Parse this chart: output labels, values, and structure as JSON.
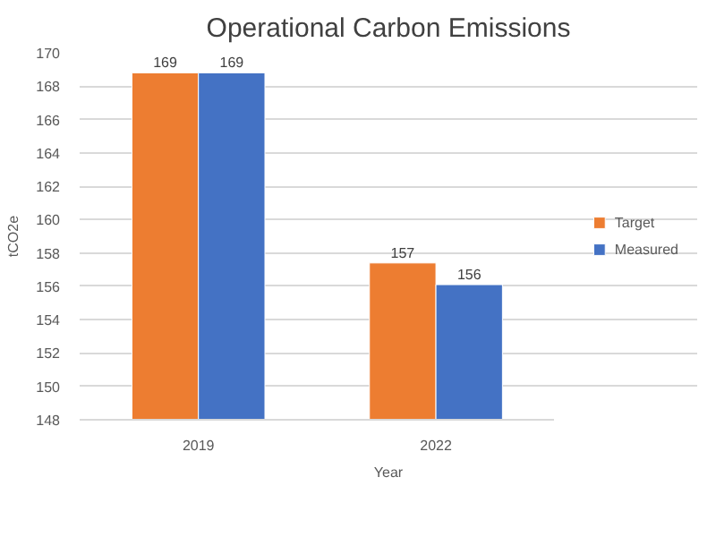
{
  "chart_data": {
    "type": "bar",
    "title": "Operational Carbon Emissions",
    "xlabel": "Year",
    "ylabel": "tCO2e",
    "categories": [
      "2019",
      "2022"
    ],
    "series": [
      {
        "name": "Target",
        "color": "#ed7d31",
        "values": [
          168.8,
          157.4
        ],
        "value_labels": [
          "169",
          "157"
        ]
      },
      {
        "name": "Measured",
        "color": "#4472c4",
        "values": [
          168.8,
          156.1
        ],
        "value_labels": [
          "169",
          "156"
        ]
      }
    ],
    "ylim": [
      148,
      170
    ],
    "yticks": [
      148,
      150,
      152,
      154,
      156,
      158,
      160,
      162,
      164,
      166,
      168,
      170
    ],
    "grid": "y",
    "legend": "right"
  }
}
